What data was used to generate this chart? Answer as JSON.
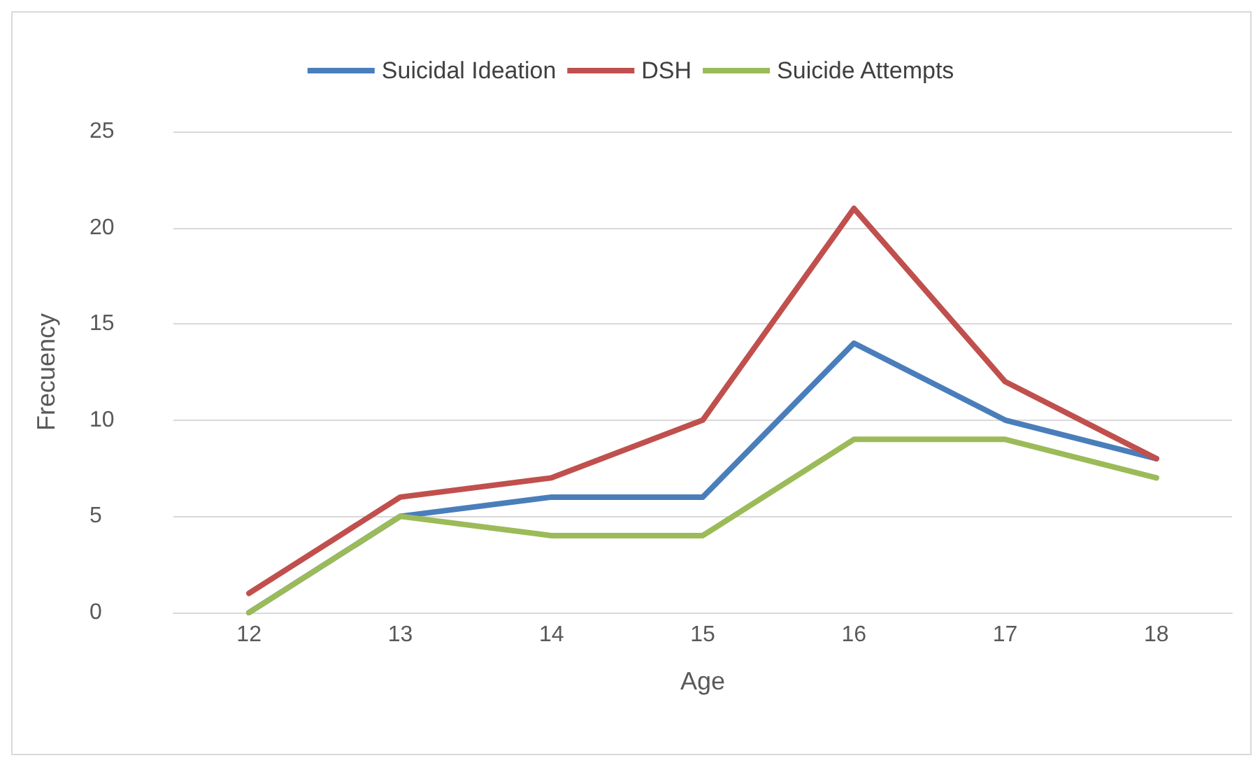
{
  "chart_data": {
    "type": "line",
    "xlabel": "Age",
    "ylabel": "Frecuency",
    "categories": [
      "12",
      "13",
      "14",
      "15",
      "16",
      "17",
      "18"
    ],
    "series": [
      {
        "name": "Suicidal Ideation",
        "color": "#4a7ebb",
        "values": [
          0,
          5,
          6,
          6,
          14,
          10,
          8
        ]
      },
      {
        "name": "DSH",
        "color": "#c0504d",
        "values": [
          1,
          6,
          7,
          10,
          21,
          12,
          8
        ]
      },
      {
        "name": "Suicide Attempts",
        "color": "#9bbb59",
        "values": [
          0,
          5,
          4,
          4,
          9,
          9,
          7
        ]
      }
    ],
    "ylim": [
      0,
      25
    ],
    "yticks": [
      0,
      5,
      10,
      15,
      20,
      25
    ],
    "grid": "y",
    "legend": "top",
    "marker": "none",
    "line_style": "solid"
  }
}
